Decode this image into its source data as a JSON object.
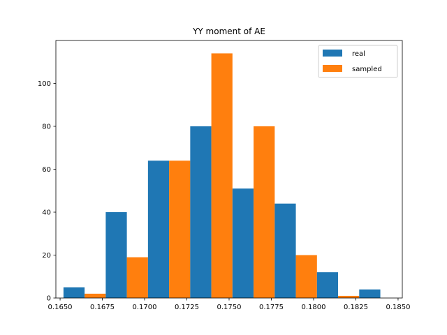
{
  "chart_data": {
    "type": "bar",
    "title": "YY moment of AE",
    "xlabel": "",
    "ylabel": "",
    "xlim": [
      0.16475,
      0.18525
    ],
    "ylim": [
      0,
      120
    ],
    "xticks": [
      0.165,
      0.1675,
      0.17,
      0.1725,
      0.175,
      0.1775,
      0.18,
      0.1825,
      0.185
    ],
    "xtick_labels": [
      "0.1650",
      "0.1675",
      "0.1700",
      "0.1725",
      "0.1750",
      "0.1775",
      "0.1800",
      "0.1825",
      "0.1850"
    ],
    "yticks": [
      0,
      20,
      40,
      60,
      80,
      100
    ],
    "ytick_labels": [
      "0",
      "20",
      "40",
      "60",
      "80",
      "100"
    ],
    "bin_edges": [
      0.1652,
      0.1677,
      0.1702,
      0.1727,
      0.1752,
      0.1777,
      0.1802,
      0.1827,
      0.1852
    ],
    "series": [
      {
        "name": "real",
        "color": "#1f77b4",
        "values": [
          5,
          40,
          64,
          80,
          51,
          44,
          12,
          4
        ]
      },
      {
        "name": "sampled",
        "color": "#ff7f0e",
        "values": [
          2,
          19,
          64,
          114,
          80,
          20,
          1,
          0
        ]
      }
    ],
    "grid": false,
    "legend_position": "top-right"
  }
}
